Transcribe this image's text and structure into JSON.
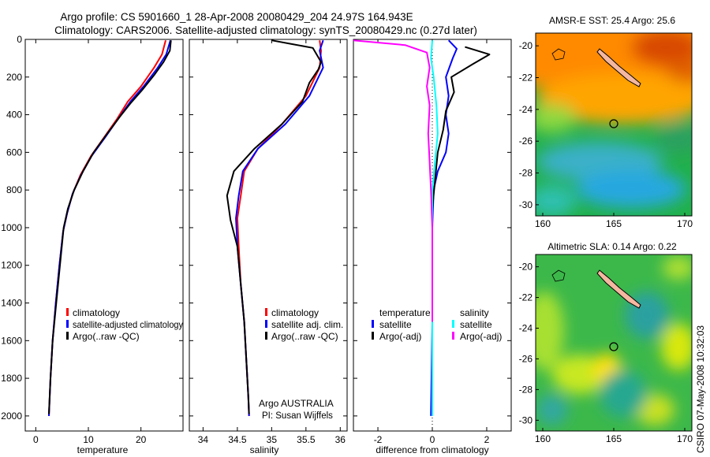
{
  "header": {
    "line1": "Argo profile: CS 5901660_1 28-Apr-2008 20080429_204 24.97S 164.943E",
    "line2": "Climatology: CARS2006. Satellite-adjusted climatology: synTS_20080429.nc (0.27d later)"
  },
  "side_note": "CSIRO 07-May-2008 10:32:03",
  "credits": {
    "line1": "Argo AUSTRALIA",
    "line2": "PI: Susan Wijffels"
  },
  "colors": {
    "climatology": "#ff0000",
    "satellite": "#0000ff",
    "argo": "#000000",
    "temp_diff": "#00ffff",
    "sal_diff": "#ff00ff"
  },
  "chart_data": [
    {
      "type": "line",
      "panel": "temperature",
      "xlabel": "temperature",
      "ylabel": "",
      "xlim": [
        -2,
        28
      ],
      "ylim": [
        2080,
        0
      ],
      "y_inverted": true,
      "xticks": [
        0,
        10,
        20
      ],
      "yticks": [
        0,
        200,
        400,
        600,
        800,
        1000,
        1200,
        1400,
        1600,
        1800,
        2000
      ],
      "legend": [
        "climatology",
        "satellite-adjusted climatology",
        "Argo(..raw -QC)"
      ],
      "legend_placement": "lower-right",
      "series": [
        {
          "name": "climatology",
          "color": "#ff0000",
          "points": [
            [
              24.7,
              5
            ],
            [
              24.0,
              80
            ],
            [
              22.5,
              150
            ],
            [
              20.0,
              250
            ],
            [
              17.5,
              330
            ],
            [
              15.5,
              420
            ],
            [
              13.0,
              520
            ],
            [
              10.5,
              620
            ],
            [
              8.5,
              720
            ],
            [
              7.0,
              820
            ],
            [
              6.0,
              920
            ],
            [
              5.2,
              1020
            ],
            [
              4.5,
              1200
            ],
            [
              3.8,
              1400
            ],
            [
              3.2,
              1600
            ],
            [
              2.8,
              1800
            ],
            [
              2.5,
              2000
            ]
          ]
        },
        {
          "name": "satellite-adjusted climatology",
          "color": "#0000ff",
          "points": [
            [
              25.6,
              5
            ],
            [
              24.8,
              80
            ],
            [
              23.2,
              150
            ],
            [
              20.5,
              250
            ],
            [
              18.0,
              330
            ],
            [
              15.7,
              420
            ],
            [
              13.2,
              520
            ],
            [
              10.6,
              620
            ],
            [
              8.6,
              720
            ],
            [
              7.0,
              820
            ],
            [
              6.0,
              920
            ],
            [
              5.2,
              1020
            ],
            [
              4.5,
              1200
            ],
            [
              3.8,
              1400
            ],
            [
              3.2,
              1600
            ],
            [
              2.8,
              1800
            ],
            [
              2.5,
              2000
            ]
          ]
        },
        {
          "name": "Argo(..raw -QC)",
          "color": "#000000",
          "points": [
            [
              25.7,
              5
            ],
            [
              25.5,
              60
            ],
            [
              24.3,
              120
            ],
            [
              22.5,
              190
            ],
            [
              20.2,
              270
            ],
            [
              18.0,
              340
            ],
            [
              16.0,
              410
            ],
            [
              13.6,
              500
            ],
            [
              11.0,
              600
            ],
            [
              9.0,
              700
            ],
            [
              7.3,
              800
            ],
            [
              6.1,
              900
            ],
            [
              5.3,
              1000
            ],
            [
              4.6,
              1200
            ],
            [
              3.9,
              1400
            ],
            [
              3.2,
              1600
            ],
            [
              2.8,
              1800
            ],
            [
              2.5,
              1990
            ]
          ]
        }
      ]
    },
    {
      "type": "line",
      "panel": "salinity",
      "xlabel": "salinity",
      "ylabel": "",
      "xlim": [
        33.8,
        36.1
      ],
      "ylim": [
        2080,
        0
      ],
      "y_inverted": true,
      "xticks": [
        34,
        34.5,
        35,
        35.5,
        36
      ],
      "yticks": [
        0,
        200,
        400,
        600,
        800,
        1000,
        1200,
        1400,
        1600,
        1800,
        2000
      ],
      "legend": [
        "climatology",
        "satellite adj. clim.",
        "Argo(..raw -QC)"
      ],
      "legend_placement": "lower-right",
      "series": [
        {
          "name": "climatology",
          "color": "#ff0000",
          "points": [
            [
              35.7,
              5
            ],
            [
              35.72,
              60
            ],
            [
              35.7,
              150
            ],
            [
              35.5,
              300
            ],
            [
              35.15,
              450
            ],
            [
              34.8,
              580
            ],
            [
              34.6,
              700
            ],
            [
              34.55,
              830
            ],
            [
              34.5,
              950
            ],
            [
              34.52,
              1100
            ],
            [
              34.55,
              1300
            ],
            [
              34.6,
              1500
            ],
            [
              34.63,
              1700
            ],
            [
              34.66,
              1900
            ],
            [
              34.67,
              2000
            ]
          ]
        },
        {
          "name": "satellite adj. clim.",
          "color": "#0000ff",
          "points": [
            [
              35.75,
              5
            ],
            [
              35.7,
              60
            ],
            [
              35.75,
              150
            ],
            [
              35.55,
              300
            ],
            [
              35.2,
              450
            ],
            [
              34.8,
              580
            ],
            [
              34.58,
              700
            ],
            [
              34.52,
              830
            ],
            [
              34.48,
              950
            ],
            [
              34.5,
              1100
            ],
            [
              34.55,
              1300
            ],
            [
              34.6,
              1500
            ],
            [
              34.63,
              1700
            ],
            [
              34.66,
              1900
            ],
            [
              34.67,
              2000
            ]
          ]
        },
        {
          "name": "Argo(..raw -QC)",
          "color": "#000000",
          "points": [
            [
              35.0,
              5
            ],
            [
              35.3,
              25
            ],
            [
              35.6,
              45
            ],
            [
              35.72,
              120
            ],
            [
              35.68,
              160
            ],
            [
              35.55,
              230
            ],
            [
              35.45,
              330
            ],
            [
              35.15,
              450
            ],
            [
              34.75,
              580
            ],
            [
              34.45,
              700
            ],
            [
              34.35,
              830
            ],
            [
              34.4,
              960
            ],
            [
              34.5,
              1100
            ],
            [
              34.55,
              1300
            ],
            [
              34.6,
              1500
            ],
            [
              34.63,
              1700
            ],
            [
              34.66,
              1900
            ],
            [
              34.67,
              1990
            ]
          ]
        }
      ]
    },
    {
      "type": "line",
      "panel": "difference",
      "xlabel": "difference from climatology",
      "ylabel": "",
      "xlim": [
        -2.9,
        2.9
      ],
      "ylim": [
        2080,
        0
      ],
      "y_inverted": true,
      "xticks": [
        -2,
        0,
        2
      ],
      "yticks": [
        0,
        200,
        400,
        600,
        800,
        1000,
        1200,
        1400,
        1600,
        1800,
        2000
      ],
      "legend_groups": [
        {
          "title": "temperature",
          "entries": [
            "satellite",
            "Argo(-adj)"
          ]
        },
        {
          "title": "salinity",
          "entries": [
            "satellite",
            "Argo(-adj)"
          ]
        }
      ],
      "legend_placement": "lower",
      "series": [
        {
          "name": "temperature satellite",
          "color": "#0000ff",
          "points": [
            [
              0.6,
              5
            ],
            [
              0.9,
              50
            ],
            [
              0.75,
              100
            ],
            [
              0.5,
              200
            ],
            [
              0.6,
              300
            ],
            [
              0.5,
              400
            ],
            [
              0.6,
              500
            ],
            [
              0.5,
              600
            ],
            [
              0.2,
              700
            ],
            [
              0.05,
              800
            ],
            [
              0,
              1000
            ],
            [
              0,
              1500
            ],
            [
              -0.05,
              2000
            ]
          ]
        },
        {
          "name": "temperature Argo(-adj)",
          "color": "#000000",
          "points": [
            [
              1.2,
              40
            ],
            [
              2.1,
              80
            ],
            [
              1.5,
              130
            ],
            [
              0.7,
              200
            ],
            [
              0.8,
              280
            ],
            [
              0.5,
              380
            ],
            [
              0.4,
              480
            ],
            [
              0.2,
              600
            ],
            [
              0.1,
              750
            ],
            [
              0,
              900
            ],
            [
              0,
              1200
            ],
            [
              0,
              1500
            ]
          ]
        },
        {
          "name": "salinity satellite",
          "color": "#00ffff",
          "points": [
            [
              0,
              5
            ],
            [
              -0.05,
              100
            ],
            [
              0.05,
              200
            ],
            [
              0.15,
              350
            ],
            [
              0.2,
              500
            ],
            [
              0.1,
              650
            ],
            [
              0,
              800
            ],
            [
              0,
              1000
            ],
            [
              0,
              1500
            ],
            [
              0,
              2000
            ]
          ]
        },
        {
          "name": "salinity Argo(-adj)",
          "color": "#ff00ff",
          "points": [
            [
              -2.9,
              5
            ],
            [
              -1.0,
              30
            ],
            [
              -0.2,
              70
            ],
            [
              -0.1,
              150
            ],
            [
              -0.2,
              250
            ],
            [
              -0.1,
              350
            ],
            [
              -0.15,
              500
            ],
            [
              -0.1,
              650
            ],
            [
              -0.05,
              800
            ],
            [
              0,
              1000
            ],
            [
              0,
              1500
            ]
          ]
        }
      ]
    },
    {
      "type": "heatmap",
      "panel": "sst_map",
      "title": "AMSR-E SST: 25.4 Argo: 25.6",
      "xlim": [
        159.5,
        170.5
      ],
      "ylim": [
        -30.7,
        -19.2
      ],
      "xticks": [
        160,
        165,
        170
      ],
      "yticks": [
        -20,
        -22,
        -24,
        -26,
        -28,
        -30
      ],
      "argo_position": {
        "lon": 164.943,
        "lat": -24.97
      }
    },
    {
      "type": "heatmap",
      "panel": "sla_map",
      "title": "Altimetric SLA: 0.14 Argo: 0.22",
      "xlim": [
        159.5,
        170.5
      ],
      "ylim": [
        -30.7,
        -19.2
      ],
      "xticks": [
        160,
        165,
        170
      ],
      "yticks": [
        -20,
        -22,
        -24,
        -26,
        -28,
        -30
      ],
      "argo_position": {
        "lon": 164.943,
        "lat": -24.97
      }
    }
  ]
}
